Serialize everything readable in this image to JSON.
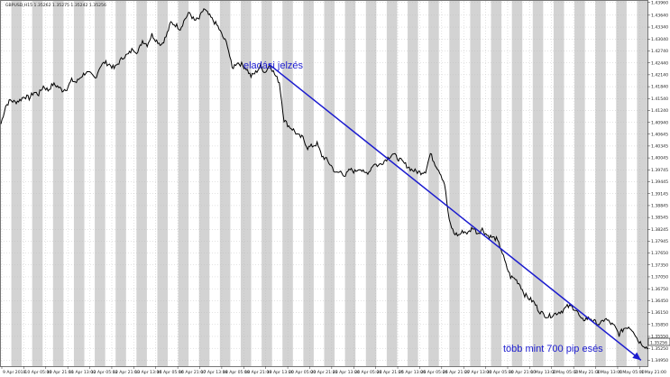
{
  "chart_data": {
    "type": "line",
    "symbol_header": "GBPUSD,H15  1.35262 1.35275 1.35242 1.35256",
    "current_price": "1.35256",
    "colors": {
      "price_line": "#000000",
      "session_band": "#d3d3d3",
      "annotation": "#1c1ccf",
      "trend_arrow": "#1c1ccf",
      "price_tag_bg": "#ffffff",
      "background": "#ffffff"
    },
    "grid": true,
    "ylim": [
      1.348,
      1.44
    ],
    "y_ticks": [
      "1.43960",
      "1.43640",
      "1.43340",
      "1.43040",
      "1.42740",
      "1.42440",
      "1.42140",
      "1.41840",
      "1.41540",
      "1.41240",
      "1.40940",
      "1.40645",
      "1.40345",
      "1.40045",
      "1.39745",
      "1.39445",
      "1.39145",
      "1.38845",
      "1.38545",
      "1.38245",
      "1.37945",
      "1.37650",
      "1.37350",
      "1.37050",
      "1.36750",
      "1.36450",
      "1.36150",
      "1.35850",
      "1.35550",
      "1.35250",
      "1.34950"
    ],
    "x_ticks": [
      "9 Apr 2018",
      "10 Apr 05:00",
      "10 Apr 21:00",
      "11 Apr 13:00",
      "12 Apr 05:00",
      "12 Apr 21:00",
      "13 Apr 13:00",
      "16 Apr 05:00",
      "16 Apr 21:00",
      "17 Apr 13:00",
      "18 Apr 05:00",
      "18 Apr 21:00",
      "19 Apr 13:00",
      "20 Apr 05:00",
      "20 Apr 21:00",
      "23 Apr 13:00",
      "24 Apr 05:00",
      "24 Apr 21:00",
      "25 Apr 13:00",
      "26 Apr 05:00",
      "26 Apr 21:00",
      "27 Apr 13:00",
      "30 Apr 05:00",
      "30 Apr 21:00",
      "1 May 13:00",
      "2 May 05:00",
      "2 May 21:00",
      "3 May 13:00",
      "4 May 05:00",
      "4 May 21:00"
    ],
    "series": [
      {
        "values": [
          1.409,
          1.4135,
          1.415,
          1.4145,
          1.415,
          1.416,
          1.4155,
          1.417,
          1.4165,
          1.4185,
          1.4175,
          1.419,
          1.4185,
          1.4175,
          1.418,
          1.42,
          1.4195,
          1.421,
          1.422,
          1.4215,
          1.4205,
          1.4235,
          1.4245,
          1.424,
          1.423,
          1.4245,
          1.426,
          1.4265,
          1.428,
          1.427,
          1.43,
          1.429,
          1.4315,
          1.43,
          1.429,
          1.431,
          1.4345,
          1.434,
          1.433,
          1.4355,
          1.437,
          1.435,
          1.4355,
          1.438,
          1.4365,
          1.435,
          1.4335,
          1.431,
          1.429,
          1.423,
          1.4245,
          1.424,
          1.423,
          1.421,
          1.422,
          1.4235,
          1.422,
          1.424,
          1.4215,
          1.4195,
          1.41,
          1.4085,
          1.4075,
          1.406,
          1.4055,
          1.403,
          1.4035,
          1.404,
          1.401,
          1.4,
          1.3985,
          1.3965,
          1.397,
          1.396,
          1.3975,
          1.397,
          1.398,
          1.3965,
          1.397,
          1.399,
          1.3985,
          1.3995,
          1.4005,
          1.4015,
          1.4005,
          1.3995,
          1.3985,
          1.3975,
          1.397,
          1.3968,
          1.3972,
          1.4015,
          1.399,
          1.397,
          1.394,
          1.3845,
          1.3815,
          1.381,
          1.382,
          1.3815,
          1.383,
          1.3815,
          1.3825,
          1.381,
          1.3805,
          1.38,
          1.3775,
          1.3735,
          1.3705,
          1.37,
          1.3685,
          1.366,
          1.365,
          1.364,
          1.362,
          1.361,
          1.3605,
          1.361,
          1.3615,
          1.362,
          1.363,
          1.363,
          1.362,
          1.3595,
          1.36,
          1.36,
          1.359,
          1.3585,
          1.36,
          1.359,
          1.358,
          1.356,
          1.3575,
          1.358,
          1.357,
          1.3545,
          1.3535,
          1.3525
        ],
        "x_range": [
          0,
          1
        ]
      }
    ],
    "annotations": {
      "sell_signal": "eladási jelzés",
      "drop_label": "több mint 700 pip esés"
    },
    "trend_arrow": {
      "from": {
        "x_frac": 0.415,
        "price": 1.424
      },
      "to": {
        "x_frac": 0.99,
        "price": 1.3495
      }
    },
    "session_band_count": 31
  }
}
